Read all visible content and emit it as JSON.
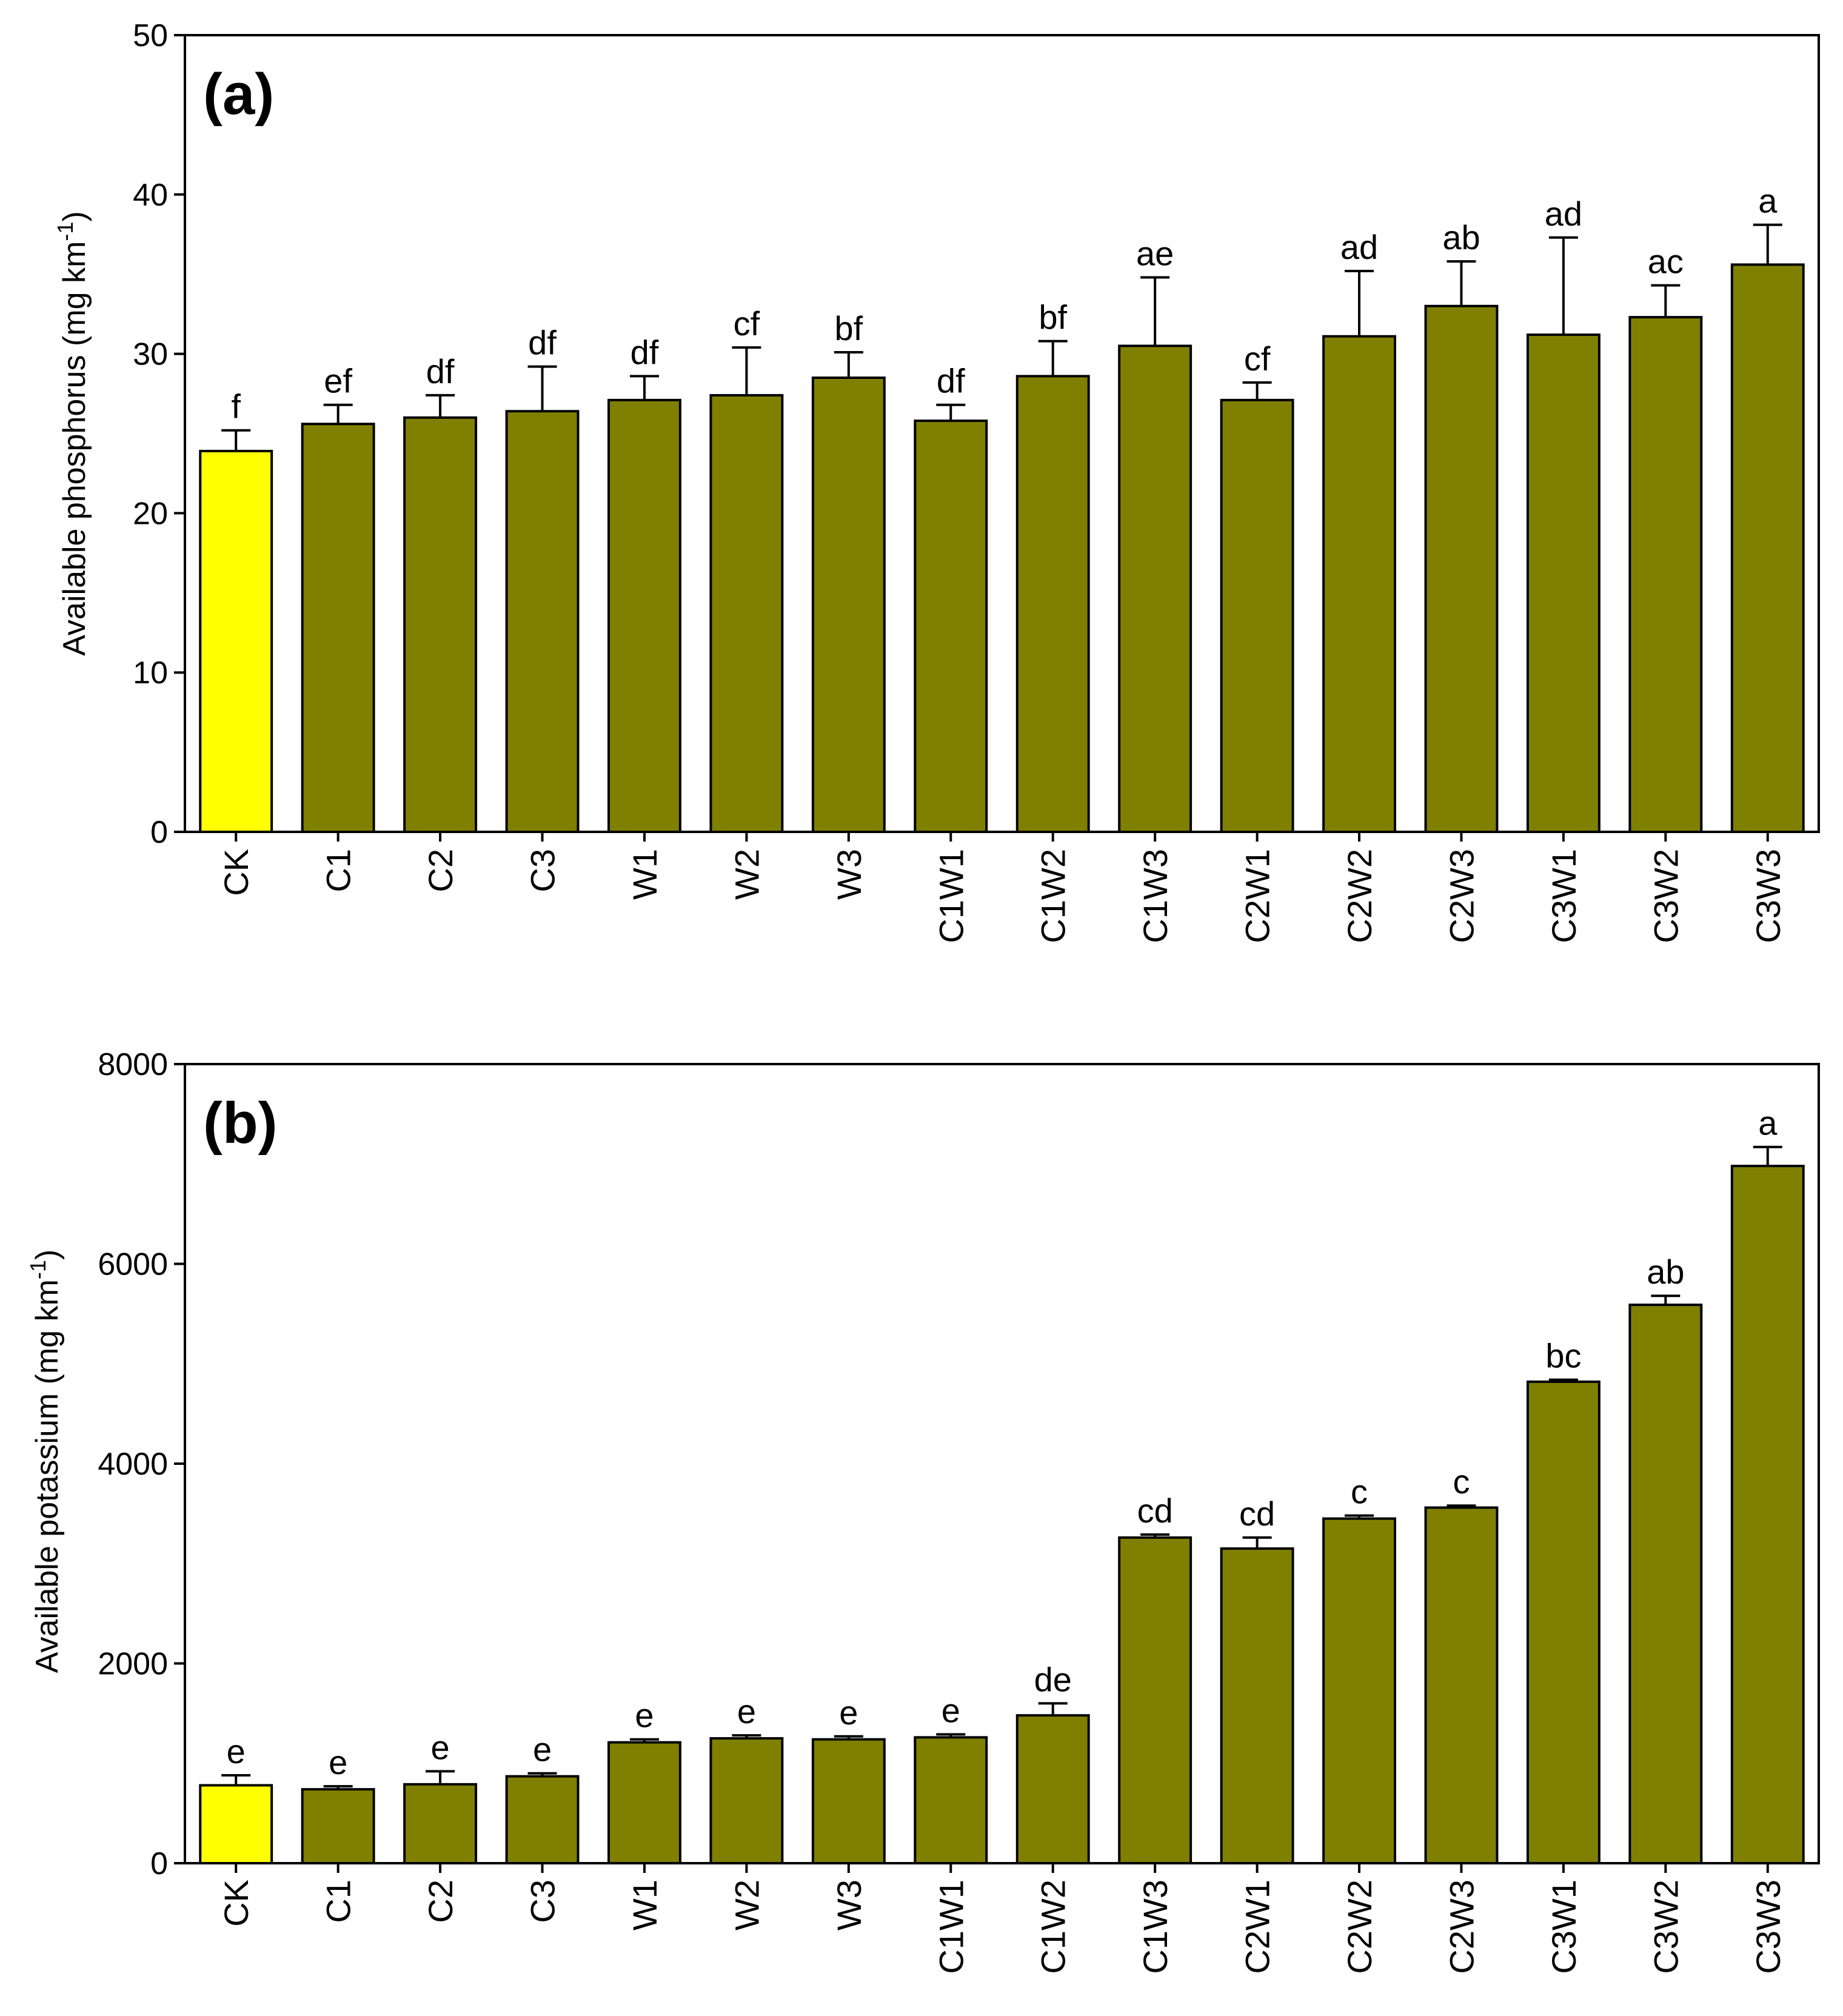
{
  "chart_data": [
    {
      "panel": "(a)",
      "type": "bar",
      "title": "",
      "xlabel": "",
      "ylabel": "Available phosphorus (mg km",
      "ylabel_sup": "-1",
      "ylabel_end": ")",
      "ylim": [
        0,
        50
      ],
      "yticks": [
        0,
        10,
        20,
        30,
        40,
        50
      ],
      "grid": false,
      "colors": {
        "CK": "#ffff00",
        "default": "#808000",
        "outline": "#000000"
      },
      "categories": [
        "CK",
        "C1",
        "C2",
        "C3",
        "W1",
        "W2",
        "W3",
        "C1W1",
        "C1W2",
        "C1W3",
        "C2W1",
        "C2W2",
        "C2W3",
        "C3W1",
        "C3W2",
        "C3W3"
      ],
      "values": [
        23.9,
        25.6,
        26.0,
        26.4,
        27.1,
        27.4,
        28.5,
        25.8,
        28.6,
        30.5,
        27.1,
        31.1,
        33.0,
        31.2,
        32.3,
        35.6
      ],
      "errors": [
        1.3,
        1.2,
        1.4,
        2.8,
        1.5,
        3.0,
        1.6,
        1.0,
        2.2,
        4.3,
        1.1,
        4.1,
        2.8,
        6.1,
        2.0,
        2.5
      ],
      "letters": [
        "f",
        "ef",
        "df",
        "df",
        "df",
        "cf",
        "bf",
        "df",
        "bf",
        "ae",
        "cf",
        "ad",
        "ab",
        "ad",
        "ac",
        "a"
      ]
    },
    {
      "panel": "(b)",
      "type": "bar",
      "title": "",
      "xlabel": "",
      "ylabel": "Available potassium (mg km",
      "ylabel_sup": "-1",
      "ylabel_end": ")",
      "ylim": [
        0,
        8000
      ],
      "yticks": [
        0,
        2000,
        4000,
        6000,
        8000
      ],
      "grid": false,
      "colors": {
        "CK": "#ffff00",
        "default": "#808000",
        "outline": "#000000"
      },
      "categories": [
        "CK",
        "C1",
        "C2",
        "C3",
        "W1",
        "W2",
        "W3",
        "C1W1",
        "C1W2",
        "C1W3",
        "C2W1",
        "C2W2",
        "C2W3",
        "C3W1",
        "C3W2",
        "C3W3"
      ],
      "values": [
        780,
        740,
        790,
        870,
        1210,
        1250,
        1240,
        1260,
        1480,
        3260,
        3150,
        3450,
        3560,
        4820,
        5590,
        6980
      ],
      "errors": [
        100,
        30,
        130,
        30,
        30,
        30,
        30,
        30,
        120,
        30,
        110,
        30,
        20,
        20,
        90,
        190
      ],
      "letters": [
        "e",
        "e",
        "e",
        "e",
        "e",
        "e",
        "e",
        "e",
        "de",
        "cd",
        "cd",
        "c",
        "c",
        "bc",
        "ab",
        "a"
      ]
    }
  ]
}
